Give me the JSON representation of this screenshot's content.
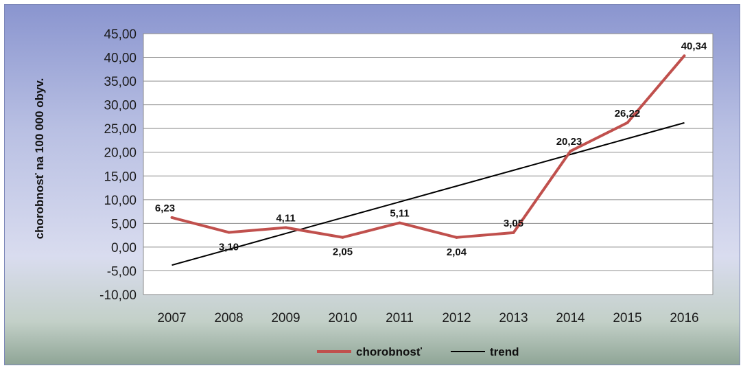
{
  "chart_data": {
    "type": "line",
    "title": "",
    "xlabel": "",
    "ylabel": "chorobnosť na 100 000 obyv.",
    "ylim": [
      -10,
      45
    ],
    "ytick_step": 5,
    "ytick_labels": [
      "-10,00",
      "-5,00",
      "0,00",
      "5,00",
      "10,00",
      "15,00",
      "20,00",
      "25,00",
      "30,00",
      "35,00",
      "40,00",
      "45,00"
    ],
    "categories": [
      "2007",
      "2008",
      "2009",
      "2010",
      "2011",
      "2012",
      "2013",
      "2014",
      "2015",
      "2016"
    ],
    "grid": true,
    "legend_position": "bottom",
    "series": [
      {
        "name": "chorobnosť",
        "color": "#c0504d",
        "values": [
          6.23,
          3.1,
          4.11,
          2.05,
          5.11,
          2.04,
          3.05,
          20.23,
          26.22,
          40.34
        ],
        "data_labels": [
          "6,23",
          "3,10",
          "4,11",
          "2,05",
          "5,11",
          "2,04",
          "3,05",
          "20,23",
          "26,22",
          "40,34"
        ]
      },
      {
        "name": "trend",
        "color": "#000000",
        "values": [
          -3.8,
          -0.47,
          2.87,
          6.2,
          9.53,
          12.87,
          16.2,
          19.53,
          22.87,
          26.2
        ]
      }
    ]
  }
}
